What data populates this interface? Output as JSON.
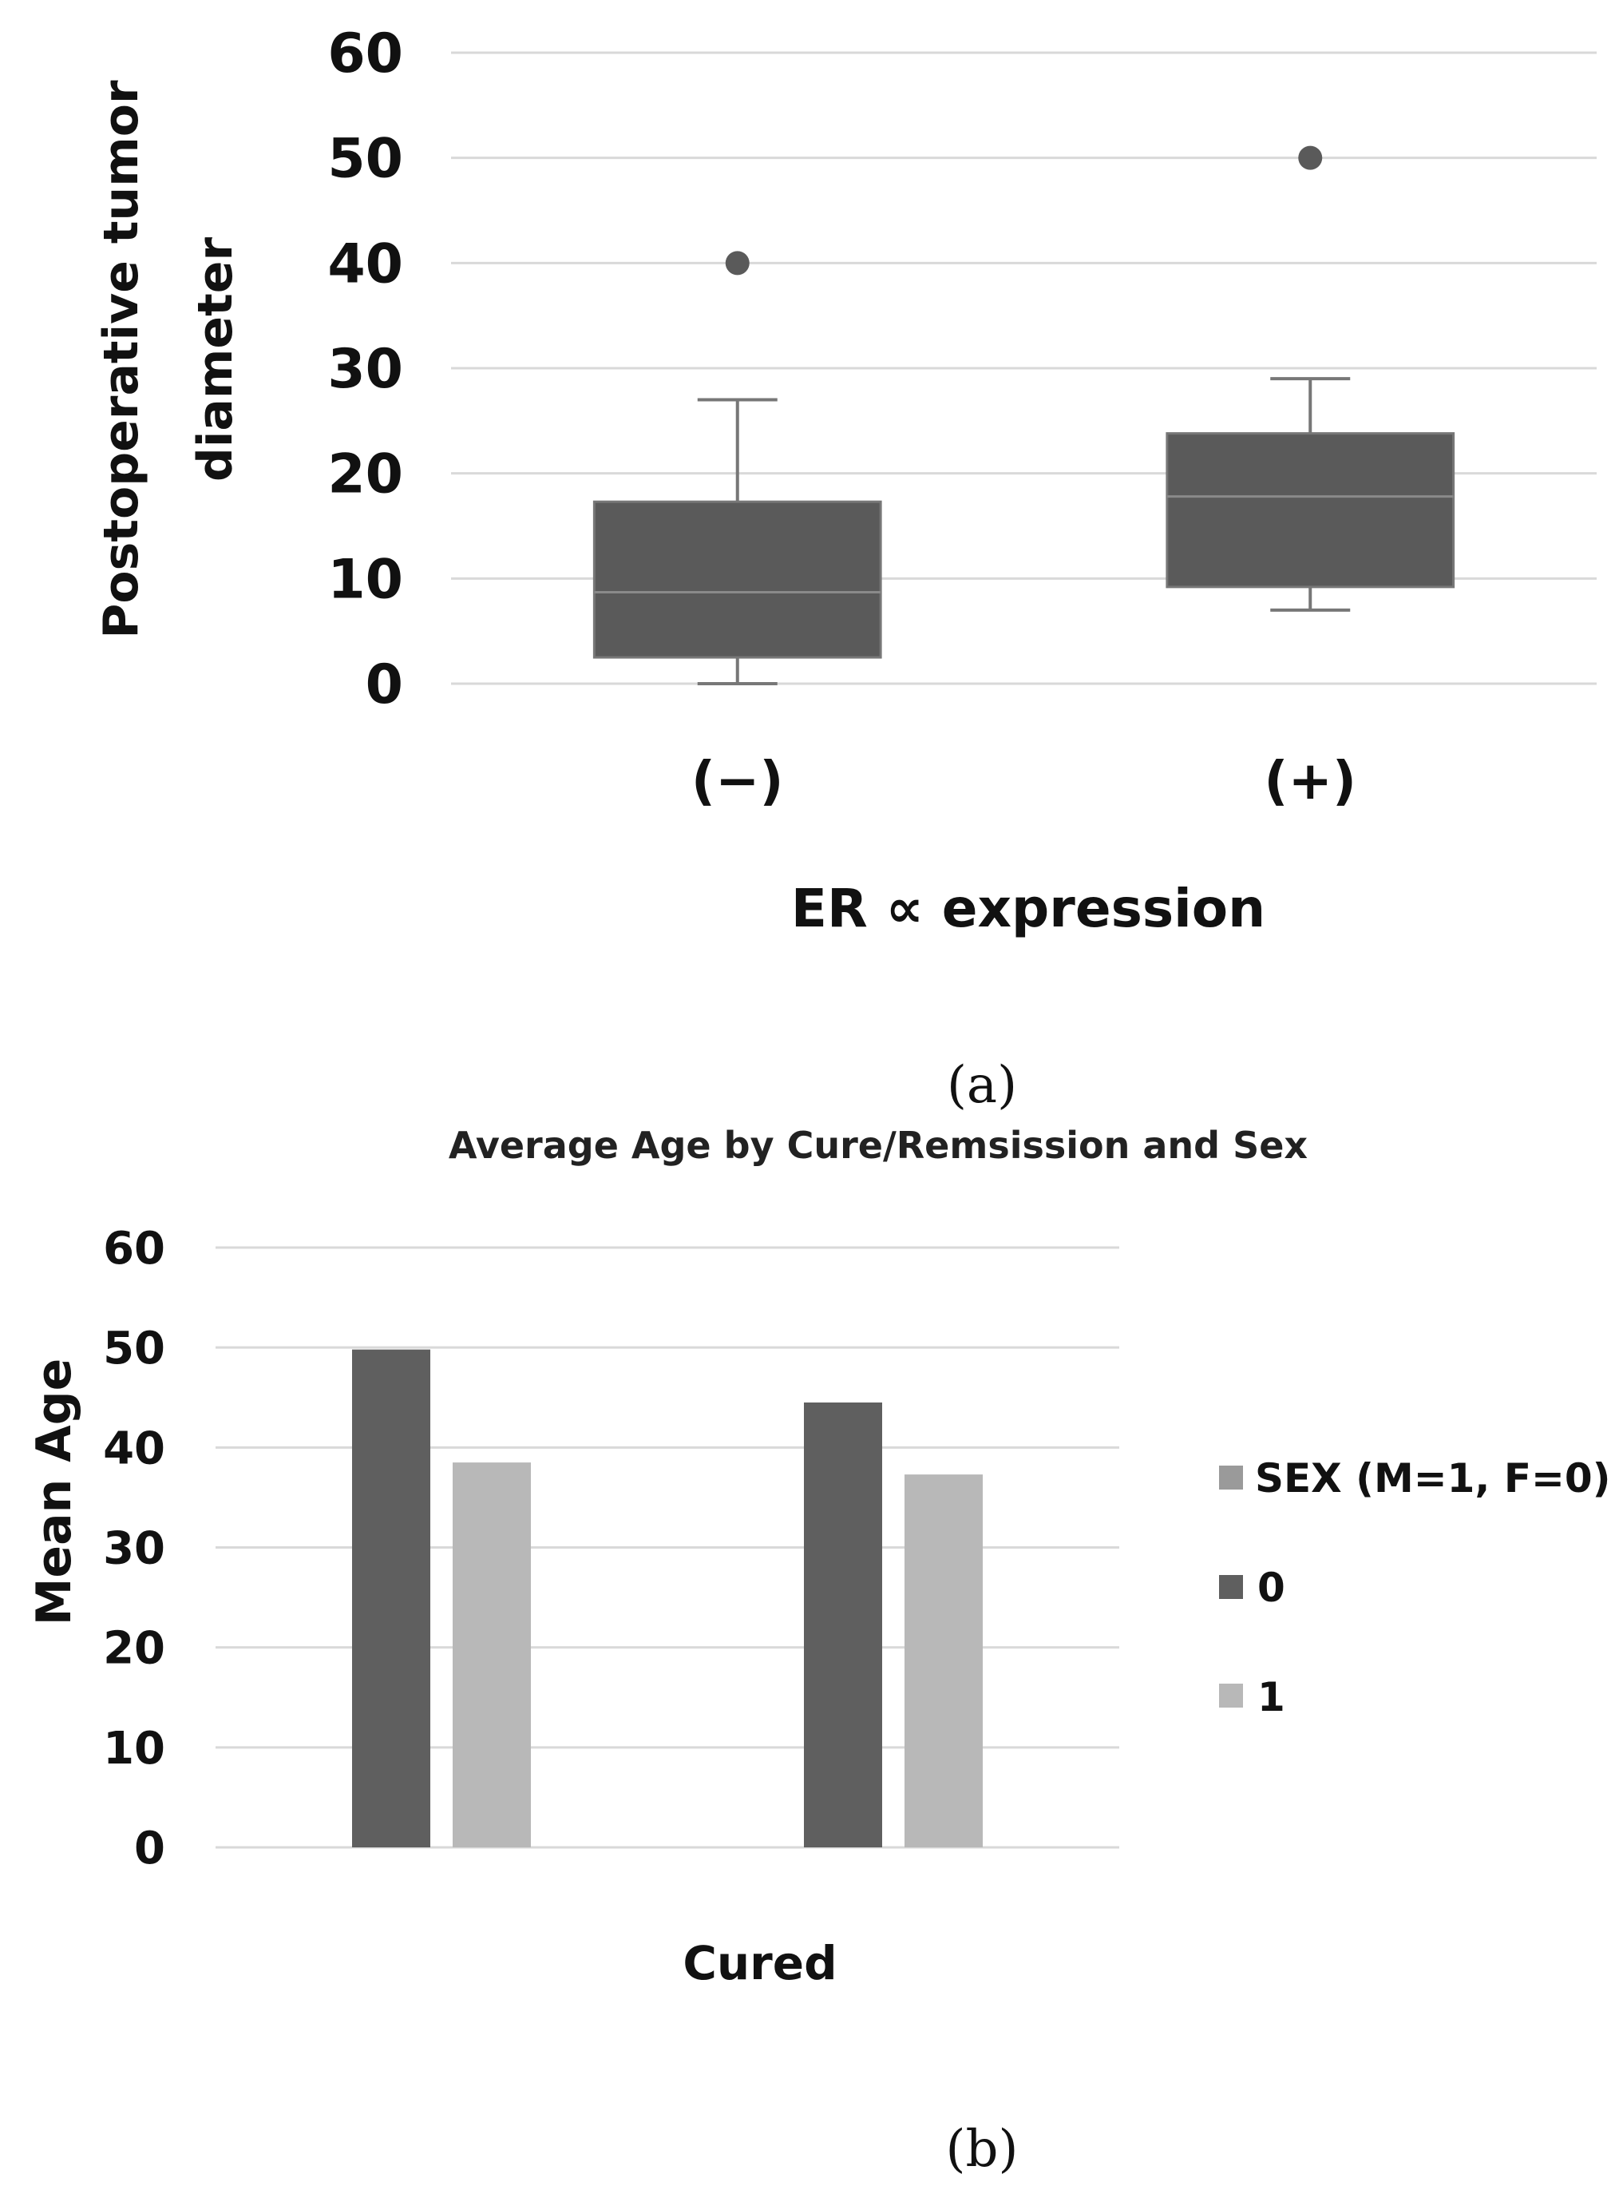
{
  "chart_data": [
    {
      "type": "box",
      "panel_label": "(a)",
      "title": "",
      "xlabel": "ER ∝  expression",
      "ylabel_lines": [
        "Postoperative tumor",
        "diameter"
      ],
      "ylim": [
        0,
        60
      ],
      "yticks": [
        0,
        10,
        20,
        30,
        40,
        50,
        60
      ],
      "grid": true,
      "categories": [
        "(−)",
        "(+)"
      ],
      "boxes": [
        {
          "name": "(−)",
          "whisker_low": 0,
          "q1": 2.5,
          "median": 8.7,
          "q3": 17.3,
          "whisker_high": 27,
          "outliers": [
            40
          ]
        },
        {
          "name": "(+)",
          "whisker_low": 7,
          "q1": 9.2,
          "median": 17.8,
          "q3": 23.8,
          "whisker_high": 29,
          "outliers": [
            50
          ]
        }
      ],
      "colors": {
        "box": "#5a5a5a",
        "line": "#777777",
        "grid": "#d9d9d9"
      }
    },
    {
      "type": "bar",
      "panel_label": "(b)",
      "title": "Average Age by Cure/Remsission and Sex",
      "xlabel": "Cured",
      "ylabel": "Mean Age",
      "ylim": [
        0,
        60
      ],
      "yticks": [
        0,
        10,
        20,
        30,
        40,
        50,
        60
      ],
      "grid": true,
      "groups": [
        "",
        ""
      ],
      "series": [
        {
          "name": "0",
          "color": "#5f5f5f",
          "values": [
            49.8,
            44.5
          ]
        },
        {
          "name": "1",
          "color": "#b8b8b8",
          "values": [
            38.5,
            37.3
          ]
        }
      ],
      "legend": {
        "placement": "right",
        "title": "SEX (M=1, F=0)",
        "title_color": "#9a9a9a",
        "items": [
          "0",
          "1"
        ]
      }
    }
  ]
}
